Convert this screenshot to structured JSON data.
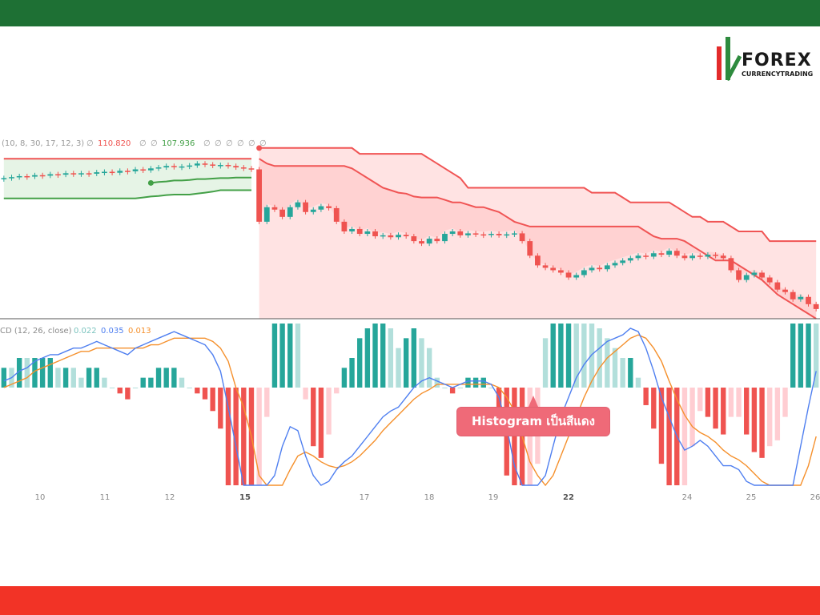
{
  "colors": {
    "top_bar": "#1e7034",
    "bottom_bar": "#f23326",
    "logo_green": "#2e8b3e",
    "logo_red": "#e32b2b",
    "bull": "#26a69a",
    "bear": "#ef5350",
    "band_red_line": "#f05454",
    "band_red_fill": "#ffe3e3",
    "band_red_fill_inner": "#ffd2d2",
    "band_green_line": "#43a047",
    "band_green_fill": "#e6f4e6",
    "macd_line": "#4f7ff0",
    "signal_line": "#f5902c",
    "hist_strong_up": "#26a69a",
    "hist_weak_up": "#b2dfdb",
    "hist_strong_down": "#ef5350",
    "hist_weak_down": "#ffcdd2",
    "callout_bg": "#ef6a78"
  },
  "logo": {
    "text": "FOREX",
    "tagline": "CURRENCYTRADING"
  },
  "chart_data": {
    "type": "line",
    "indicator_legend": {
      "prefix": "(10, 8, 30, 17, 12, 3)",
      "values": [
        "∅",
        "110.820",
        "∅",
        "∅",
        "107.936",
        "∅",
        "∅",
        "∅",
        "∅",
        "∅",
        "∅"
      ]
    },
    "macd_legend": {
      "prefix": "CD (12, 26, close)",
      "histogram": "0.022",
      "macd": "0.035",
      "signal": "0.013"
    },
    "x_ticks": [
      {
        "label": "10",
        "bold": false
      },
      {
        "label": "11",
        "bold": false
      },
      {
        "label": "12",
        "bold": false
      },
      {
        "label": "15",
        "bold": true
      },
      {
        "label": "17",
        "bold": false
      },
      {
        "label": "18",
        "bold": false
      },
      {
        "label": "19",
        "bold": false
      },
      {
        "label": "22",
        "bold": true
      },
      {
        "label": "24",
        "bold": false
      },
      {
        "label": "25",
        "bold": false
      },
      {
        "label": "26",
        "bold": false
      }
    ],
    "price_closes": [
      110.2,
      110.22,
      110.24,
      110.23,
      110.26,
      110.25,
      110.28,
      110.27,
      110.3,
      110.28,
      110.3,
      110.29,
      110.32,
      110.33,
      110.31,
      110.35,
      110.34,
      110.38,
      110.36,
      110.4,
      110.42,
      110.45,
      110.43,
      110.44,
      110.46,
      110.5,
      110.48,
      110.46,
      110.47,
      110.45,
      110.42,
      110.4,
      110.38,
      109.3,
      109.6,
      109.55,
      109.4,
      109.6,
      109.7,
      109.5,
      109.55,
      109.62,
      109.58,
      109.3,
      109.1,
      109.15,
      109.05,
      109.1,
      109.0,
      109.02,
      108.98,
      109.03,
      109.0,
      108.9,
      108.85,
      108.95,
      108.9,
      109.05,
      109.1,
      109.02,
      109.06,
      109.04,
      109.03,
      109.05,
      109.02,
      109.04,
      109.06,
      108.9,
      108.6,
      108.4,
      108.35,
      108.3,
      108.25,
      108.15,
      108.2,
      108.3,
      108.35,
      108.32,
      108.4,
      108.45,
      108.5,
      108.55,
      108.6,
      108.58,
      108.65,
      108.62,
      108.7,
      108.6,
      108.55,
      108.6,
      108.58,
      108.62,
      108.6,
      108.55,
      108.3,
      108.1,
      108.2,
      108.25,
      108.15,
      108.05,
      107.9,
      107.85,
      107.7,
      107.75,
      107.6,
      107.5
    ],
    "price_range": [
      107.3,
      110.9
    ],
    "band_upper": [
      110.82,
      110.82,
      110.82,
      110.82,
      110.82,
      110.82,
      110.82,
      110.82,
      110.82,
      110.82,
      110.82,
      110.82,
      110.82,
      110.82,
      110.82,
      110.82,
      110.82,
      110.82,
      110.82,
      110.82,
      110.82,
      110.82,
      110.82,
      110.82,
      110.82,
      110.82,
      110.82,
      110.82,
      110.82,
      110.82,
      110.82,
      110.82,
      110.82,
      110.82,
      110.82,
      110.82,
      110.82,
      110.82,
      110.82,
      110.82,
      110.82,
      110.82,
      110.82,
      110.82,
      110.82,
      110.82,
      110.7,
      110.7,
      110.7,
      110.7,
      110.7,
      110.7,
      110.7,
      110.7,
      110.7,
      110.6,
      110.5,
      110.4,
      110.3,
      110.2,
      110.0,
      110.0,
      110.0,
      110.0,
      110.0,
      110.0,
      110.0,
      110.0,
      110.0,
      110.0,
      110.0,
      110.0,
      110.0,
      110.0,
      110.0,
      110.0,
      109.9,
      109.9,
      109.9,
      109.9,
      109.8,
      109.7,
      109.7,
      109.7,
      109.7,
      109.7,
      109.7,
      109.6,
      109.5,
      109.4,
      109.4,
      109.3,
      109.3,
      109.3,
      109.2,
      109.1,
      109.1,
      109.1,
      109.1,
      108.9,
      108.9,
      108.9,
      108.9,
      108.9,
      108.9,
      108.9
    ],
    "band_lower": [
      110.55,
      110.55,
      110.55,
      110.55,
      110.55,
      110.55,
      110.55,
      110.55,
      110.55,
      110.55,
      110.55,
      110.55,
      110.55,
      110.55,
      110.55,
      110.55,
      110.55,
      110.55,
      110.55,
      110.55,
      110.55,
      110.55,
      110.55,
      110.55,
      110.55,
      110.55,
      110.55,
      110.55,
      110.55,
      110.55,
      110.55,
      110.55,
      110.55,
      110.6,
      110.5,
      110.45,
      110.45,
      110.45,
      110.45,
      110.45,
      110.45,
      110.45,
      110.45,
      110.45,
      110.45,
      110.4,
      110.3,
      110.2,
      110.1,
      110.0,
      109.95,
      109.9,
      109.88,
      109.82,
      109.8,
      109.8,
      109.8,
      109.75,
      109.7,
      109.7,
      109.65,
      109.6,
      109.6,
      109.55,
      109.5,
      109.4,
      109.3,
      109.25,
      109.2,
      109.2,
      109.2,
      109.2,
      109.2,
      109.2,
      109.2,
      109.2,
      109.2,
      109.2,
      109.2,
      109.2,
      109.2,
      109.2,
      109.2,
      109.1,
      109.0,
      108.95,
      108.95,
      108.95,
      108.9,
      108.8,
      108.7,
      108.6,
      108.5,
      108.5,
      108.5,
      108.4,
      108.3,
      108.2,
      108.1,
      107.95,
      107.8,
      107.7,
      107.6,
      107.5,
      107.4,
      107.3
    ],
    "green_upper": [
      110.6,
      110.6,
      110.6,
      110.6,
      110.6,
      110.6,
      110.6,
      110.6,
      110.6,
      110.6,
      110.6,
      110.6,
      110.6,
      110.6,
      110.6,
      110.6,
      110.6,
      110.6,
      110.6,
      110.6,
      110.6,
      110.6,
      110.6,
      110.6,
      110.6,
      110.6,
      110.6,
      110.6,
      110.6,
      110.6,
      110.6,
      110.6,
      110.6
    ],
    "green_mid": [
      null,
      null,
      null,
      null,
      null,
      null,
      null,
      null,
      null,
      null,
      null,
      null,
      null,
      null,
      null,
      null,
      null,
      null,
      null,
      110.1,
      110.12,
      110.13,
      110.15,
      110.15,
      110.16,
      110.18,
      110.18,
      110.19,
      110.2,
      110.2,
      110.21,
      110.21,
      110.21
    ],
    "green_lower": [
      109.78,
      109.78,
      109.78,
      109.78,
      109.78,
      109.78,
      109.78,
      109.78,
      109.78,
      109.78,
      109.78,
      109.78,
      109.78,
      109.78,
      109.78,
      109.78,
      109.78,
      109.78,
      109.8,
      109.82,
      109.83,
      109.85,
      109.86,
      109.86,
      109.86,
      109.88,
      109.9,
      109.92,
      109.95,
      109.95,
      109.95,
      109.95,
      109.95
    ],
    "macd": [
      0.02,
      0.03,
      0.05,
      0.06,
      0.08,
      0.09,
      0.1,
      0.1,
      0.11,
      0.12,
      0.12,
      0.13,
      0.14,
      0.13,
      0.12,
      0.11,
      0.1,
      0.12,
      0.13,
      0.14,
      0.15,
      0.16,
      0.17,
      0.16,
      0.15,
      0.14,
      0.13,
      0.1,
      0.05,
      -0.1,
      -0.3,
      -0.5,
      -0.7,
      -0.75,
      -0.6,
      -0.45,
      -0.3,
      -0.2,
      -0.22,
      -0.35,
      -0.45,
      -0.5,
      -0.48,
      -0.42,
      -0.38,
      -0.35,
      -0.3,
      -0.25,
      -0.2,
      -0.15,
      -0.12,
      -0.1,
      -0.05,
      0.0,
      0.02,
      0.03,
      0.02,
      0.01,
      0.0,
      0.01,
      0.02,
      0.02,
      0.02,
      0.01,
      -0.05,
      -0.2,
      -0.4,
      -0.55,
      -0.6,
      -0.58,
      -0.45,
      -0.3,
      -0.15,
      -0.05,
      0.03,
      0.07,
      0.1,
      0.12,
      0.14,
      0.15,
      0.16,
      0.18,
      0.17,
      0.12,
      0.05,
      -0.05,
      -0.15,
      -0.25,
      -0.32,
      -0.3,
      -0.27,
      -0.3,
      -0.35,
      -0.4,
      -0.4,
      -0.42,
      -0.48,
      -0.55,
      -0.6,
      -0.62,
      -0.65,
      -0.63,
      -0.5,
      -0.3,
      -0.1,
      0.05
    ],
    "signal": [
      0.0,
      0.01,
      0.02,
      0.03,
      0.05,
      0.06,
      0.07,
      0.08,
      0.09,
      0.1,
      0.11,
      0.11,
      0.12,
      0.12,
      0.12,
      0.12,
      0.12,
      0.12,
      0.12,
      0.13,
      0.13,
      0.14,
      0.15,
      0.15,
      0.15,
      0.15,
      0.15,
      0.14,
      0.12,
      0.08,
      0.0,
      -0.1,
      -0.25,
      -0.45,
      -0.55,
      -0.55,
      -0.5,
      -0.42,
      -0.35,
      -0.33,
      -0.35,
      -0.38,
      -0.4,
      -0.41,
      -0.4,
      -0.38,
      -0.35,
      -0.31,
      -0.27,
      -0.22,
      -0.18,
      -0.14,
      -0.1,
      -0.06,
      -0.03,
      -0.01,
      0.01,
      0.01,
      0.01,
      0.01,
      0.01,
      0.01,
      0.01,
      0.01,
      0.0,
      -0.05,
      -0.12,
      -0.25,
      -0.38,
      -0.45,
      -0.5,
      -0.45,
      -0.35,
      -0.25,
      -0.15,
      -0.05,
      0.02,
      0.06,
      0.09,
      0.11,
      0.13,
      0.15,
      0.16,
      0.15,
      0.12,
      0.08,
      0.02,
      -0.06,
      -0.14,
      -0.2,
      -0.23,
      -0.25,
      -0.28,
      -0.32,
      -0.35,
      -0.37,
      -0.4,
      -0.44,
      -0.48,
      -0.52,
      -0.56,
      -0.58,
      -0.57,
      -0.5,
      -0.4,
      -0.25
    ],
    "macd_range": [
      -0.5,
      0.18
    ]
  },
  "annotation": {
    "callout": "Histogram เป็นสีแดง"
  }
}
